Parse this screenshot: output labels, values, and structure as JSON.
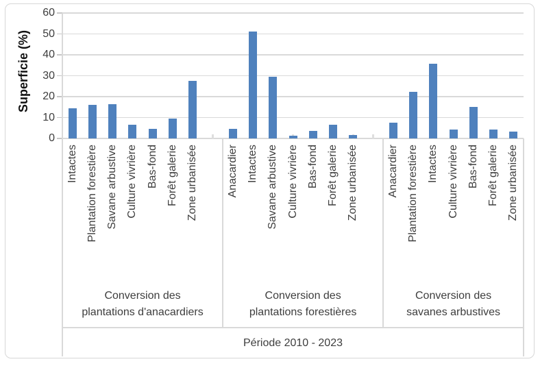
{
  "chart_data": {
    "type": "bar",
    "title": "",
    "ylabel": "Superficie (%)",
    "xlabel": "Période 2010 - 2023",
    "ylim": [
      0,
      60
    ],
    "yticks": [
      0,
      10,
      20,
      30,
      40,
      50,
      60
    ],
    "grid": true,
    "legend": false,
    "bar_color": "#4f81bd",
    "gridline_color": "#d9d9d9",
    "groups": [
      {
        "label": [
          "Conversion des",
          "plantations d'anacardiers"
        ],
        "categories": [
          "Intactes",
          "Plantation forestière",
          "Savane arbustive",
          "Culture vivrière",
          "Bas-fond",
          "Forêt galerie",
          "Zone urbanisée"
        ],
        "values": [
          14.5,
          16,
          16.3,
          6.4,
          4.7,
          9.4,
          27.5
        ]
      },
      {
        "label": [
          "Conversion des",
          "plantations forestières"
        ],
        "categories": [
          "Anacardier",
          "Intactes",
          "Savane arbustive",
          "Culture vivrière",
          "Bas-fond",
          "Forêt galerie",
          "Zone urbanisée"
        ],
        "values": [
          4.5,
          51.2,
          29.6,
          1.2,
          3.6,
          6.6,
          1.5
        ]
      },
      {
        "label": [
          "Conversion des",
          "savanes arbustives"
        ],
        "categories": [
          "Anacardier",
          "Plantation forestière",
          "Intactes",
          "Culture vivrière",
          "Bas-fond",
          "Forêt galerie",
          "Zone urbanisée"
        ],
        "values": [
          7.4,
          22.2,
          35.8,
          4.4,
          15,
          4.4,
          3.4
        ]
      }
    ]
  }
}
